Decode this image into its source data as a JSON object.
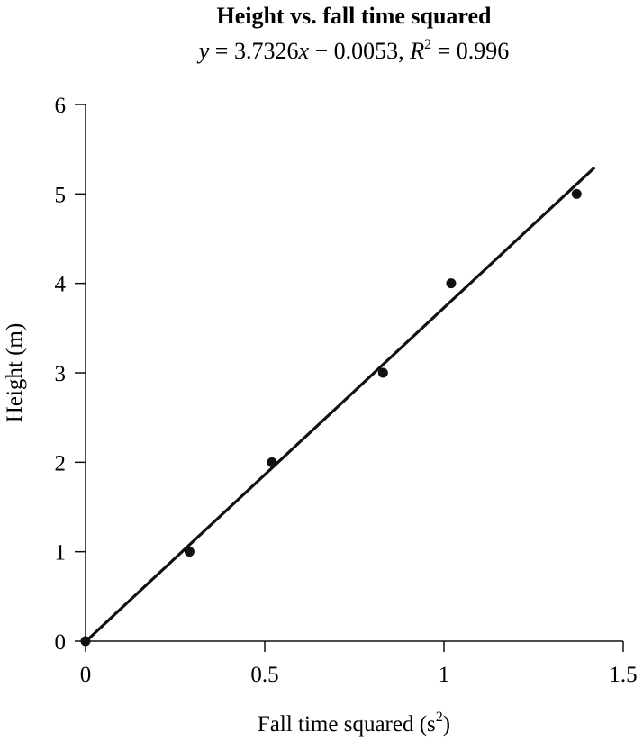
{
  "chart_data": {
    "type": "scatter",
    "title": "Height vs. fall time squared",
    "subtitle": {
      "y": "y",
      "eq": " = 3.7326",
      "x": "x",
      "rest": " − 0.0053, ",
      "r": "R",
      "sup": "2",
      "val": " = 0.996"
    },
    "xlabel": "Fall time squared (s",
    "xlabel_sup": "2",
    "xlabel_end": ")",
    "ylabel": "Height (m)",
    "xlim": [
      0,
      1.5
    ],
    "ylim": [
      0,
      6
    ],
    "xticks": [
      "0",
      "0.5",
      "1",
      "1.5"
    ],
    "yticks": [
      "0",
      "1",
      "2",
      "3",
      "4",
      "5",
      "6"
    ],
    "points": [
      {
        "x": 0,
        "y": 0
      },
      {
        "x": 0.29,
        "y": 1
      },
      {
        "x": 0.52,
        "y": 2
      },
      {
        "x": 0.83,
        "y": 3
      },
      {
        "x": 1.02,
        "y": 4
      },
      {
        "x": 1.37,
        "y": 5
      }
    ],
    "fit": {
      "slope": 3.7326,
      "intercept": -0.0053,
      "x_range": [
        0,
        1.42
      ]
    }
  }
}
